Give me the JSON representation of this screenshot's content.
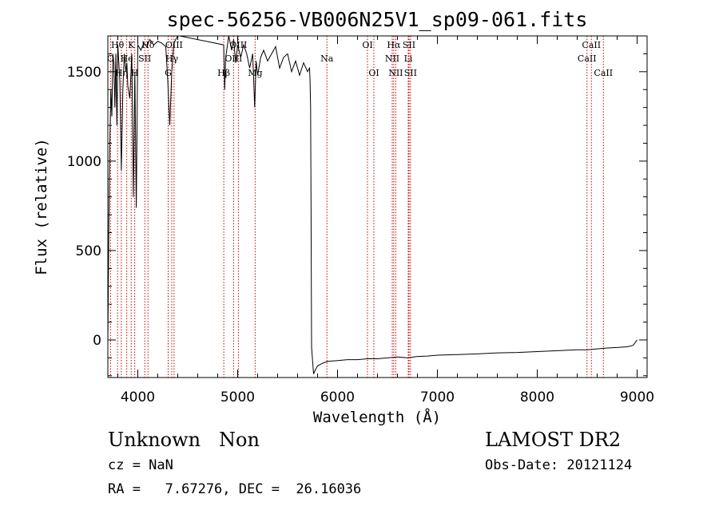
{
  "chart_data": {
    "type": "line",
    "title": "spec-56256-VB006N25V1_sp09-061.fits",
    "xlabel": "Wavelength (Å)",
    "ylabel": "Flux (relative)",
    "xlim": [
      3700,
      9100
    ],
    "ylim": [
      -210,
      1700
    ],
    "xticks": [
      4000,
      5000,
      6000,
      7000,
      8000,
      9000
    ],
    "yticks": [
      0,
      500,
      1000,
      1500
    ],
    "ytick_label_values": [
      "0",
      "500",
      "1000",
      "1500"
    ],
    "xtick_label_values": [
      "4000",
      "5000",
      "6000",
      "7000",
      "8000",
      "9000"
    ],
    "series": [
      {
        "name": "flux",
        "x": [
          3700,
          3710,
          3720,
          3730,
          3740,
          3750,
          3760,
          3770,
          3780,
          3790,
          3800,
          3820,
          3835,
          3850,
          3865,
          3880,
          3890,
          3900,
          3920,
          3940,
          3955,
          3970,
          3985,
          4000,
          4030,
          4060,
          4090,
          4120,
          4160,
          4200,
          4240,
          4280,
          4300,
          4320,
          4340,
          4360,
          4400,
          4420,
          4860,
          4870,
          4880,
          4890,
          4910,
          4940,
          4960,
          4980,
          5000,
          5030,
          5060,
          5090,
          5120,
          5150,
          5170,
          5185,
          5200,
          5230,
          5260,
          5300,
          5340,
          5380,
          5420,
          5460,
          5500,
          5540,
          5580,
          5620,
          5660,
          5700,
          5720,
          5725,
          5730,
          5735,
          5740,
          5760,
          5780,
          5800,
          5850,
          5900,
          6000,
          6100,
          6200,
          6300,
          6400,
          6500,
          6600,
          6700,
          6800,
          6900,
          7000,
          7200,
          7400,
          7600,
          7800,
          8000,
          8200,
          8400,
          8500,
          8600,
          8700,
          8800,
          8900,
          8960,
          9000
        ],
        "y": [
          -10,
          650,
          1100,
          1400,
          1250,
          1600,
          1550,
          1300,
          1600,
          1200,
          1650,
          1450,
          950,
          1400,
          1600,
          1500,
          1550,
          1420,
          1350,
          1600,
          800,
          1500,
          740,
          1650,
          1620,
          1660,
          1640,
          1680,
          1650,
          1670,
          1660,
          1640,
          1450,
          1200,
          1500,
          1660,
          1700,
          1700,
          1650,
          1400,
          1580,
          1620,
          1700,
          1620,
          1680,
          1550,
          1650,
          1580,
          1650,
          1600,
          1520,
          1600,
          1300,
          1560,
          1480,
          1580,
          1620,
          1560,
          1600,
          1640,
          1520,
          1580,
          1600,
          1500,
          1560,
          1480,
          1550,
          1500,
          1520,
          1450,
          1300,
          700,
          -40,
          -190,
          -165,
          -145,
          -130,
          -120,
          -115,
          -110,
          -110,
          -105,
          -105,
          -100,
          -95,
          -100,
          -92,
          -90,
          -85,
          -82,
          -78,
          -72,
          -70,
          -65,
          -60,
          -55,
          -55,
          -50,
          -45,
          -42,
          -38,
          -30,
          0
        ]
      }
    ],
    "lines": [
      {
        "name": "Hθ",
        "wavelength": 3797,
        "row": 0
      },
      {
        "name": "O",
        "wavelength": 3727,
        "row": 1
      },
      {
        "name": "He",
        "wavelength": 3889,
        "row": 1
      },
      {
        "name": "K",
        "wavelength": 3934,
        "row": 0
      },
      {
        "name": "Hδ",
        "wavelength": 4102,
        "row": 0
      },
      {
        "name": "SII",
        "wavelength": 4070,
        "row": 1
      },
      {
        "name": "Hη",
        "wavelength": 3835,
        "row": 2
      },
      {
        "name": "H",
        "wavelength": 3969,
        "row": 2
      },
      {
        "name": "OIII",
        "wavelength": 4363,
        "row": 0
      },
      {
        "name": "Hγ",
        "wavelength": 4340,
        "row": 1
      },
      {
        "name": "G",
        "wavelength": 4304,
        "row": 2
      },
      {
        "name": "OIII",
        "wavelength": 5007,
        "row": 0
      },
      {
        "name": "OIII",
        "wavelength": 4959,
        "row": 1
      },
      {
        "name": "Hβ",
        "wavelength": 4861,
        "row": 2
      },
      {
        "name": "Mg",
        "wavelength": 5175,
        "row": 2
      },
      {
        "name": "Na",
        "wavelength": 5894,
        "row": 1
      },
      {
        "name": "OI",
        "wavelength": 6300,
        "row": 0
      },
      {
        "name": "OI",
        "wavelength": 6364,
        "row": 2
      },
      {
        "name": "Hα",
        "wavelength": 6563,
        "row": 0
      },
      {
        "name": "SII",
        "wavelength": 6716,
        "row": 0
      },
      {
        "name": "NII",
        "wavelength": 6548,
        "row": 1
      },
      {
        "name": "Li",
        "wavelength": 6708,
        "row": 1
      },
      {
        "name": "NII",
        "wavelength": 6583,
        "row": 2
      },
      {
        "name": "SII",
        "wavelength": 6731,
        "row": 2
      },
      {
        "name": "CaII",
        "wavelength": 8542,
        "row": 0
      },
      {
        "name": "CaII",
        "wavelength": 8498,
        "row": 1
      },
      {
        "name": "CaII",
        "wavelength": 8662,
        "row": 2
      }
    ]
  },
  "info": {
    "class_text": "Unknown   Non",
    "cz_text": "cz = NaN",
    "radec_text": "RA =   7.67276, DEC =  26.16036",
    "survey_text": "LAMOST DR2",
    "obsdate_text": "Obs-Date: 20121124"
  },
  "colors": {
    "line_marker": "#cc0000",
    "spectrum": "#000000",
    "axes": "#000000"
  }
}
